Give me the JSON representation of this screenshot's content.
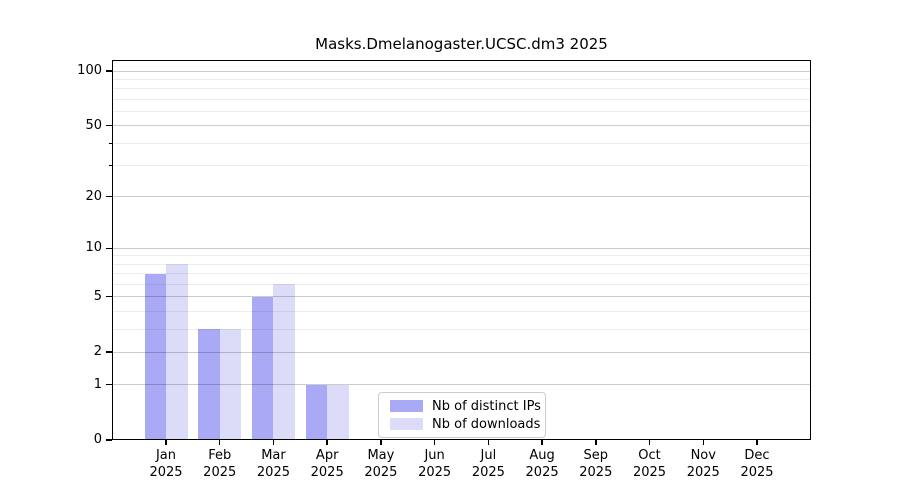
{
  "title": "Masks.Dmelanogaster.UCSC.dm3 2025",
  "chart_data": {
    "type": "bar",
    "title": "Masks.Dmelanogaster.UCSC.dm3 2025",
    "categories": [
      "Jan 2025",
      "Feb 2025",
      "Mar 2025",
      "Apr 2025",
      "May 2025",
      "Jun 2025",
      "Jul 2025",
      "Aug 2025",
      "Sep 2025",
      "Oct 2025",
      "Nov 2025",
      "Dec 2025"
    ],
    "series": [
      {
        "name": "Nb of distinct IPs",
        "color": "#a9a9f5",
        "values": [
          7,
          3,
          5,
          1,
          0,
          0,
          0,
          0,
          0,
          0,
          0,
          0
        ]
      },
      {
        "name": "Nb of downloads",
        "color": "#dcdcf8",
        "values": [
          8,
          3,
          6,
          1,
          0,
          0,
          0,
          0,
          0,
          0,
          0,
          0
        ]
      }
    ],
    "xlabel": "",
    "ylabel": "",
    "y_scale": "log10(1+y)",
    "ylim": [
      0,
      115
    ],
    "y_ticks": [
      0,
      1,
      2,
      5,
      10,
      20,
      50,
      100
    ],
    "y_minor_gridlines": [
      3,
      4,
      6,
      7,
      8,
      9,
      30,
      40,
      60,
      70,
      80,
      90
    ],
    "y_minor_ticks": [
      30,
      40
    ],
    "grid": true,
    "legend_position": "bottom-center"
  }
}
